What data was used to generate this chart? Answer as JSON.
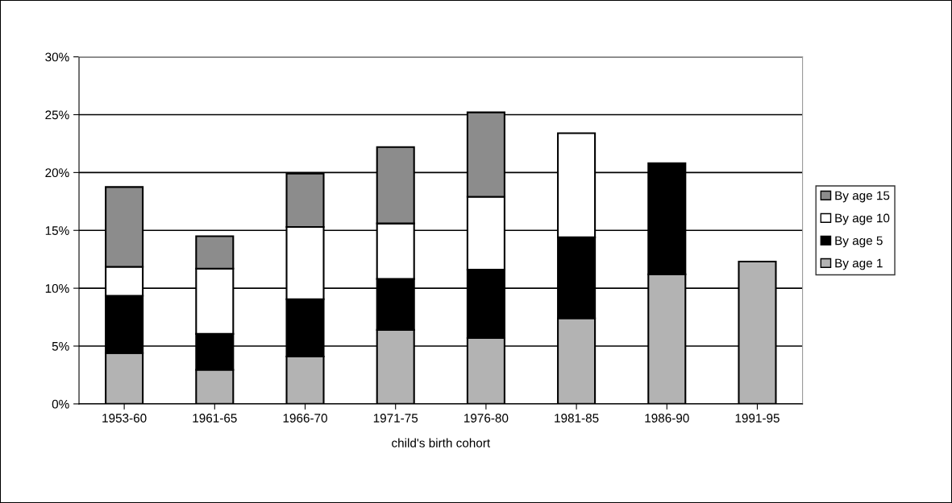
{
  "chart_data": {
    "type": "bar",
    "stacked": true,
    "xlabel": "child's birth cohort",
    "categories": [
      "1953-60",
      "1961-65",
      "1966-70",
      "1971-75",
      "1976-80",
      "1981-85",
      "1986-90",
      "1991-95"
    ],
    "series": [
      {
        "name": "By age 1",
        "color": "#b3b3b3",
        "values": [
          4.4,
          2.95,
          4.1,
          6.4,
          5.7,
          7.4,
          11.2,
          12.3
        ]
      },
      {
        "name": "By age 5",
        "color": "#000000",
        "values": [
          4.95,
          3.1,
          4.95,
          4.4,
          5.9,
          7.0,
          9.6,
          null
        ]
      },
      {
        "name": "By age 10",
        "color": "#ffffff",
        "values": [
          2.5,
          5.65,
          6.25,
          4.8,
          6.3,
          9.0,
          null,
          null
        ]
      },
      {
        "name": "By age 15",
        "color": "#8c8c8c",
        "values": [
          6.9,
          2.8,
          4.6,
          6.6,
          7.3,
          null,
          null,
          null
        ]
      }
    ],
    "ylim": [
      0,
      30
    ],
    "yticks": [
      {
        "value": 0,
        "label": "0%"
      },
      {
        "value": 5,
        "label": "5%"
      },
      {
        "value": 10,
        "label": "10%"
      },
      {
        "value": 15,
        "label": "15%"
      },
      {
        "value": 20,
        "label": "20%"
      },
      {
        "value": 25,
        "label": "25%"
      },
      {
        "value": 30,
        "label": "30%"
      }
    ],
    "grid": "y",
    "legend": "right"
  }
}
